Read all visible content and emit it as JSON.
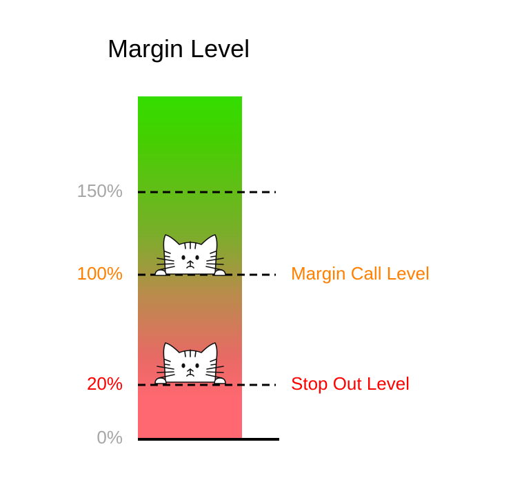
{
  "title": "Margin Level",
  "colors": {
    "top": "#33dd00",
    "bottom": "#ff6870",
    "label_gray": "#a6a6a6",
    "margin_call": "#ff8000",
    "stop_out": "#ff0000"
  },
  "levels": [
    {
      "percent_label": "150%",
      "value": 150,
      "level_label": ""
    },
    {
      "percent_label": "100%",
      "value": 100,
      "level_label": "Margin Call Level"
    },
    {
      "percent_label": "20%",
      "value": 20,
      "level_label": "Stop Out Level"
    },
    {
      "percent_label": "0%",
      "value": 0,
      "level_label": ""
    }
  ],
  "icons": [
    "cat-icon",
    "cat-icon"
  ]
}
